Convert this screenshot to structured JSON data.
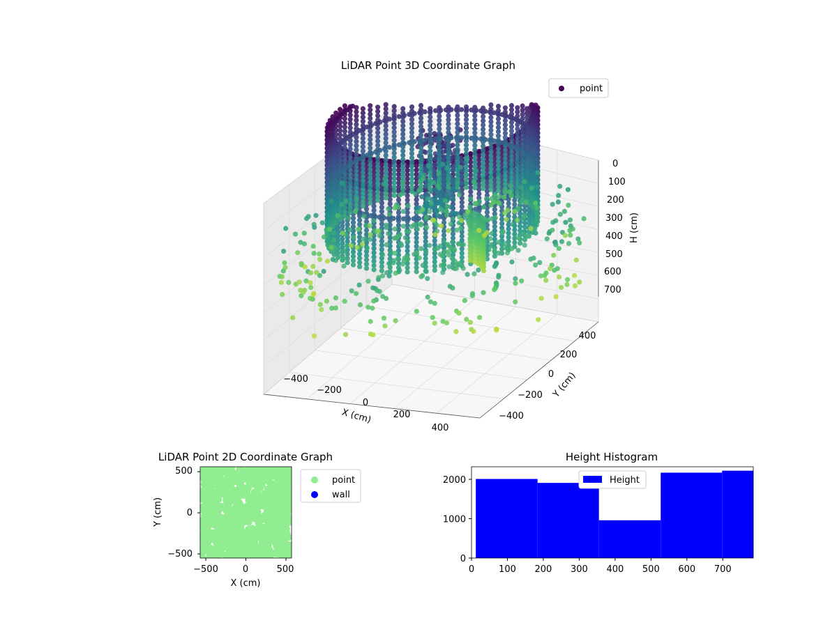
{
  "chart_data": [
    {
      "type": "scatter",
      "projection": "3d",
      "title": "LiDAR Point 3D Coordinate Graph",
      "xlabel": "X (cm)",
      "ylabel": "Y (cm)",
      "zlabel": "H (cm)",
      "x_ticks": [
        "−400",
        "−200",
        "0",
        "200",
        "400"
      ],
      "y_ticks": [
        "−400",
        "−200",
        "0",
        "200",
        "400"
      ],
      "z_ticks": [
        "0",
        "100",
        "200",
        "300",
        "400",
        "500",
        "600",
        "700"
      ],
      "xlim": [
        -550,
        550
      ],
      "ylim": [
        -550,
        550
      ],
      "zlim": [
        760,
        0
      ],
      "z_inverted": true,
      "colormap": "viridis (color by height)",
      "legend": {
        "placement": "top-right",
        "entries": [
          {
            "name": "point",
            "color": "#440154"
          }
        ]
      },
      "grid": true,
      "structure": {
        "ring_wall": {
          "radius_cm": 470,
          "height_top_cm": 0,
          "height_bottom_cm": 480
        },
        "outer_scatter": {
          "radius_cm": [
            520,
            700
          ],
          "height_cm": [
            430,
            720
          ]
        },
        "center_object": {
          "height_cm": [
            60,
            380
          ]
        }
      }
    },
    {
      "type": "scatter",
      "title": "LiDAR Point 2D Coordinate Graph",
      "xlabel": "X (cm)",
      "ylabel": "Y (cm)",
      "x_ticks": [
        "−500",
        "0",
        "500"
      ],
      "y_ticks": [
        "−500",
        "0",
        "500"
      ],
      "xlim": [
        -570,
        570
      ],
      "ylim": [
        -550,
        560
      ],
      "legend": {
        "placement": "outside-right",
        "entries": [
          {
            "name": "point",
            "color": "#90ee90"
          },
          {
            "name": "wall",
            "color": "#0000ff"
          }
        ]
      },
      "point_region": {
        "x_range": [
          -560,
          560
        ],
        "y_range": [
          -560,
          560
        ]
      }
    },
    {
      "type": "bar",
      "subtype": "histogram",
      "title": "Height Histogram",
      "x_ticks": [
        "0",
        "100",
        "200",
        "300",
        "400",
        "500",
        "600",
        "700"
      ],
      "y_ticks": [
        "0",
        "1000",
        "2000"
      ],
      "xlim": [
        0,
        785
      ],
      "ylim": [
        0,
        2320
      ],
      "legend": {
        "placement": "top-center",
        "entries": [
          {
            "name": "Height",
            "color": "#0000ff"
          }
        ]
      },
      "bins": [
        {
          "from": 12,
          "to": 184,
          "count": 2010
        },
        {
          "from": 184,
          "to": 355,
          "count": 1910
        },
        {
          "from": 355,
          "to": 527,
          "count": 960
        },
        {
          "from": 527,
          "to": 698,
          "count": 2170
        },
        {
          "from": 698,
          "to": 785,
          "count": 2220
        }
      ]
    }
  ]
}
